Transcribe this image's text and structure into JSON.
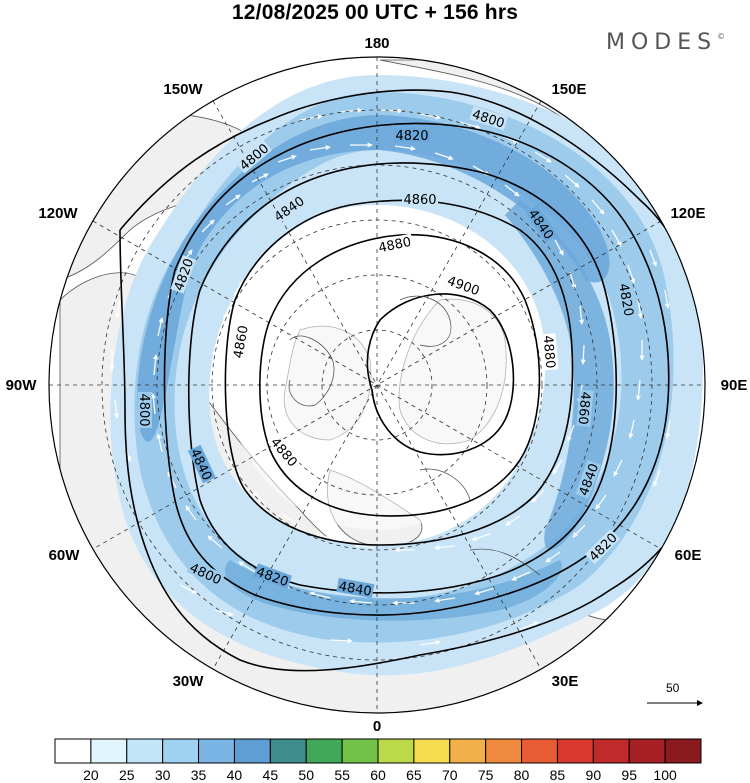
{
  "header": {
    "title": "12/08/2025  00 UTC  + 156 hrs",
    "brand": "MODES",
    "brand_mark": "©"
  },
  "longitude_labels": [
    "180",
    "150E",
    "120E",
    "90E",
    "60E",
    "30E",
    "0",
    "30W",
    "60W",
    "90W",
    "120W",
    "150W"
  ],
  "contours": [
    {
      "value": 4800,
      "label": "4800"
    },
    {
      "value": 4820,
      "label": "4820"
    },
    {
      "value": 4840,
      "label": "4840"
    },
    {
      "value": 4860,
      "label": "4860"
    },
    {
      "value": 4880,
      "label": "4880"
    },
    {
      "value": 4900,
      "label": "4900"
    }
  ],
  "wind_reference": {
    "value": "50"
  },
  "colorbar": {
    "ticks": [
      "20",
      "25",
      "30",
      "35",
      "40",
      "45",
      "50",
      "55",
      "60",
      "65",
      "70",
      "75",
      "80",
      "85",
      "90",
      "95",
      "100"
    ],
    "colors": [
      "#ffffff",
      "#e1f5fe",
      "#c2e6f8",
      "#9fd1f0",
      "#7bb5e3",
      "#5e9ed4",
      "#3f8c8f",
      "#41a85a",
      "#72c24a",
      "#bcd94a",
      "#f6dd50",
      "#f2b04a",
      "#ef8a3e",
      "#e85d35",
      "#d8382e",
      "#c02a2a",
      "#a51f24",
      "#8a1a1e"
    ]
  },
  "colors": {
    "land": "#f2f2f2",
    "jet_light": "#c8e4f6",
    "jet_mid": "#9ccbec",
    "jet_strong": "#6aa7da"
  }
}
